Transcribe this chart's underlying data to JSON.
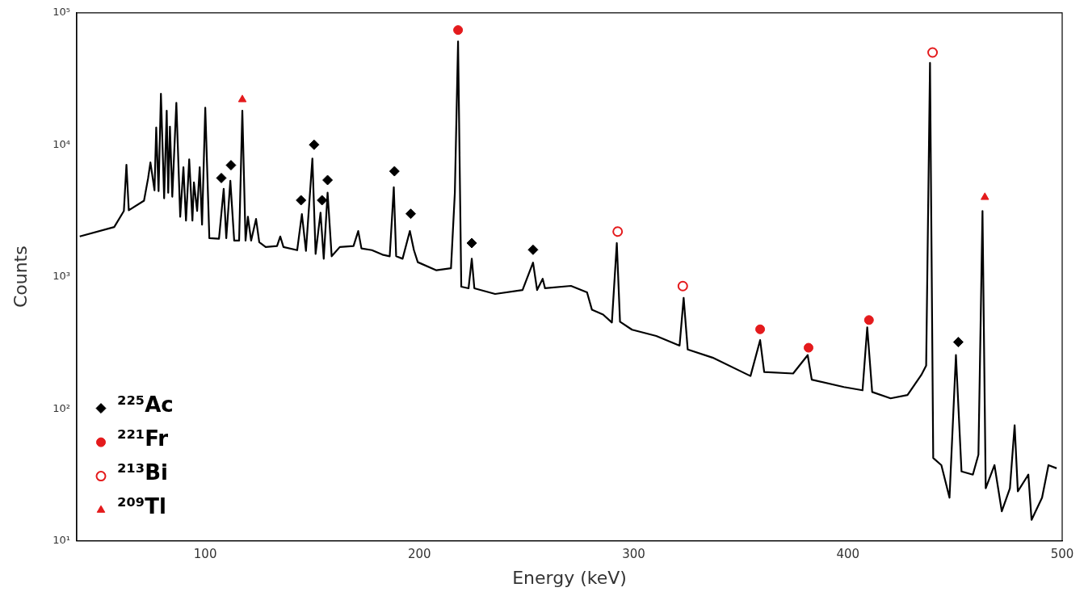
{
  "chart_data": {
    "type": "line",
    "xlabel": "Energy (keV)",
    "ylabel": "Counts",
    "log": "y",
    "grid": false,
    "legend": "bottom left",
    "xlim": [
      40,
      500
    ],
    "xticks": [
      100,
      200,
      300,
      400,
      500
    ],
    "ylim": [
      10,
      100000
    ],
    "yticks": [
      {
        "value": 10,
        "label": "10¹"
      },
      {
        "value": 100,
        "label": "10²"
      },
      {
        "value": 1000,
        "label": "10³"
      },
      {
        "value": 10000,
        "label": "10⁴"
      },
      {
        "value": 100000,
        "label": "10⁵"
      }
    ],
    "series": [
      {
        "type": "line",
        "color": "#000000",
        "marker": "none",
        "line_style": "solid",
        "x": [
          41.4,
          57.5,
          62.0,
          63.2,
          64.3,
          71.4,
          73.3,
          74.4,
          76.3,
          77.1,
          78.2,
          79.3,
          80.8,
          82.0,
          82.7,
          83.5,
          84.6,
          86.5,
          88.3,
          89.8,
          91.0,
          92.5,
          94.0,
          94.7,
          96.2,
          97.4,
          98.5,
          100.0,
          101.9,
          106.4,
          108.6,
          109.8,
          111.7,
          113.5,
          115.8,
          117.3,
          118.8,
          119.9,
          121.4,
          123.7,
          125.2,
          128.2,
          133.5,
          135.0,
          136.5,
          142.9,
          145.1,
          147.0,
          150.0,
          151.5,
          153.8,
          155.3,
          157.1,
          159.0,
          162.8,
          169.2,
          171.4,
          172.9,
          177.8,
          182.7,
          186.1,
          188.0,
          189.1,
          192.1,
          195.5,
          197.4,
          199.2,
          207.9,
          214.7,
          216.5,
          218.0,
          219.5,
          222.9,
          224.4,
          225.6,
          235.3,
          248.1,
          253.0,
          254.9,
          257.5,
          258.6,
          270.7,
          278.2,
          280.5,
          285.7,
          289.8,
          292.1,
          293.6,
          299.2,
          310.5,
          321.4,
          323.3,
          325.2,
          336.8,
          354.5,
          359.0,
          360.9,
          374.4,
          381.2,
          383.1,
          398.1,
          406.8,
          409.0,
          411.3,
          419.9,
          427.8,
          434.2,
          436.5,
          438.3,
          439.8,
          443.6,
          447.4,
          450.4,
          453.0,
          458.3,
          460.9,
          462.8,
          464.3,
          468.4,
          471.8,
          475.6,
          477.8,
          479.3,
          484.2,
          485.7,
          490.6,
          493.6,
          497.4
        ],
        "values": [
          2020,
          2380,
          3150,
          7040,
          3190,
          3770,
          5560,
          7340,
          4520,
          13500,
          4450,
          24300,
          3930,
          18100,
          4330,
          13700,
          4040,
          20800,
          2850,
          6760,
          2660,
          7760,
          2660,
          5190,
          3150,
          6760,
          2480,
          19100,
          1960,
          1940,
          4640,
          1960,
          5340,
          1880,
          1880,
          18100,
          1880,
          2850,
          1880,
          2740,
          1830,
          1680,
          1710,
          2020,
          1680,
          1590,
          2980,
          1570,
          7870,
          1490,
          3060,
          1370,
          4330,
          1430,
          1680,
          1710,
          2220,
          1640,
          1590,
          1470,
          1430,
          4770,
          1430,
          1370,
          2220,
          1590,
          1290,
          1120,
          1160,
          4330,
          60600,
          841,
          818,
          1370,
          818,
          741,
          794,
          1280,
          794,
          966,
          818,
          853,
          762,
          562,
          517,
          450,
          1800,
          456,
          397,
          356,
          301,
          692,
          281,
          244,
          177,
          331,
          190,
          185,
          255,
          166,
          146,
          138,
          414,
          134,
          120,
          127,
          180,
          212,
          41700,
          42.4,
          37.4,
          21.2,
          255,
          33.5,
          31.7,
          44.9,
          3150,
          25.0,
          37.4,
          16.7,
          25.0,
          75.0,
          23.7,
          31.7,
          14.4,
          21.2,
          37.4,
          35.4
        ]
      },
      {
        "type": "scatter",
        "name": "²²⁵Ac",
        "color": "#000000",
        "marker": "diamond",
        "x": [
          107.5,
          112.0,
          144.7,
          150.8,
          154.5,
          157.1,
          188.3,
          195.9,
          224.4,
          253.0,
          451.5
        ],
        "values": [
          5600,
          7000,
          3800,
          10000,
          3800,
          5400,
          6300,
          3000,
          1800,
          1600,
          320
        ]
      },
      {
        "type": "scatter",
        "name": "²²¹Fr",
        "color": "#e41a1c",
        "marker": "circle",
        "x": [
          218.0,
          359.0,
          381.6,
          409.8
        ],
        "values": [
          74000,
          400,
          290,
          470
        ]
      },
      {
        "type": "scatter",
        "name": "²¹³Bi",
        "color": "#e41a1c",
        "marker": "open-circle",
        "x": [
          292.5,
          322.9,
          439.5
        ],
        "values": [
          2200,
          850,
          50000
        ]
      },
      {
        "type": "scatter",
        "name": "²⁰⁹Tl",
        "color": "#e41a1c",
        "marker": "triangle",
        "x": [
          117.3,
          463.9
        ],
        "values": [
          22000,
          4000
        ]
      }
    ]
  }
}
